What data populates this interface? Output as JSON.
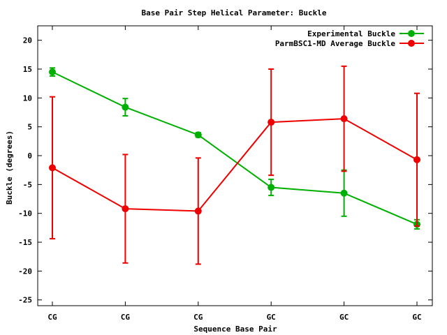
{
  "chart_data": {
    "type": "line",
    "title": "Base Pair Step Helical Parameter: Buckle",
    "xlabel": "Sequence Base Pair",
    "ylabel": "Buckle (degrees)",
    "categories": [
      "CG",
      "CG",
      "CG",
      "GC",
      "GC",
      "GC"
    ],
    "yticks": [
      20,
      15,
      10,
      5,
      0,
      -5,
      -10,
      -15,
      -20,
      -25
    ],
    "ylim": [
      -26,
      22.5
    ],
    "grid": false,
    "legend_position": "top-right",
    "series": [
      {
        "name": "Experimental Buckle",
        "color": "#00b000",
        "values": [
          14.5,
          8.4,
          3.6,
          -5.5,
          -6.5,
          -11.9
        ],
        "errors": [
          0.7,
          1.5,
          0.4,
          1.4,
          4.0,
          0.8
        ]
      },
      {
        "name": "ParmBSC1-MD Average Buckle",
        "color": "#ee0000",
        "values": [
          -2.1,
          -9.2,
          -9.6,
          5.8,
          6.4,
          -0.7
        ],
        "errors": [
          12.3,
          9.4,
          9.2,
          9.2,
          9.1,
          11.5
        ]
      }
    ]
  }
}
